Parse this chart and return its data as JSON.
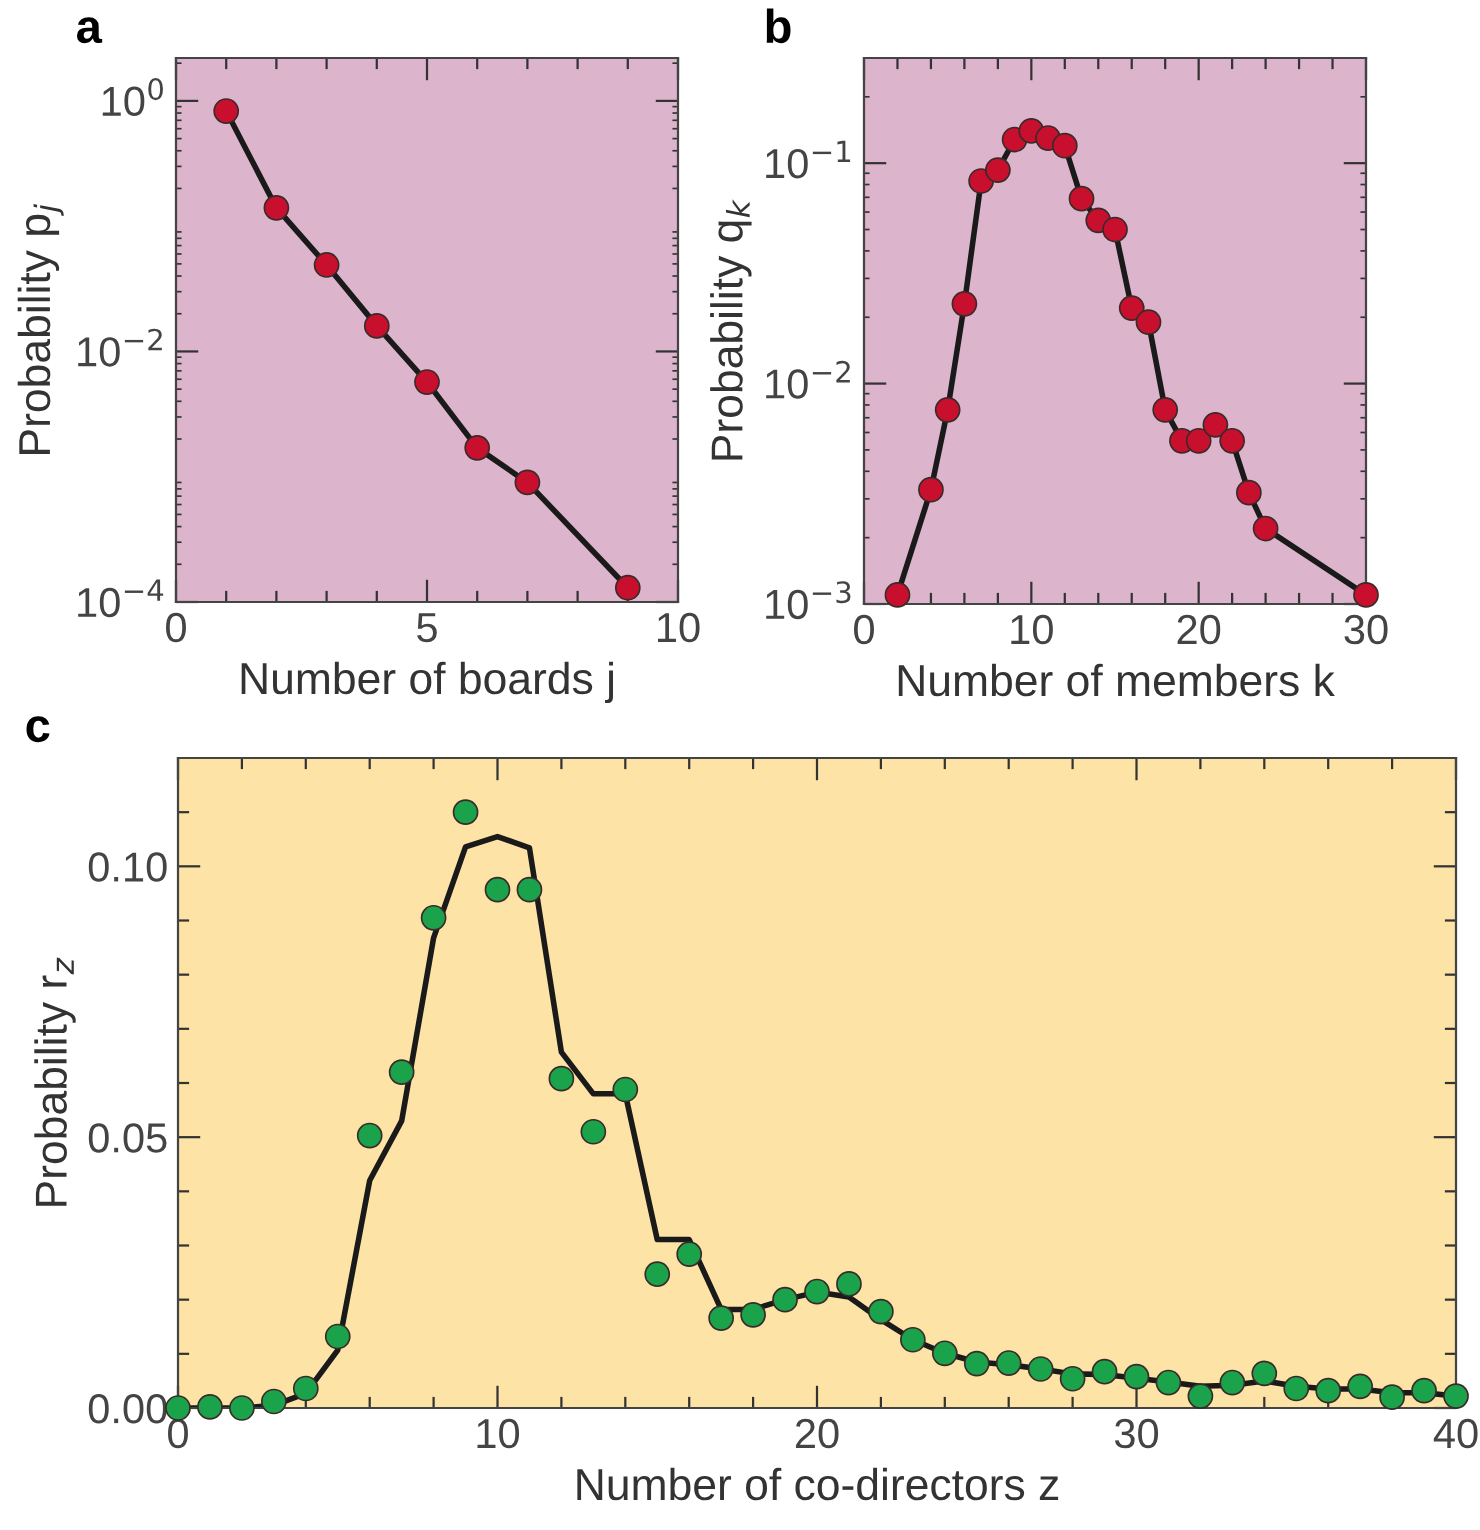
{
  "chart_data": [
    {
      "type": "line",
      "title": "a",
      "xlabel": "Number of boards j",
      "ylabel": "Probability p$_{j}$",
      "log": "y",
      "grid": false,
      "legend": false,
      "xlim": [
        0,
        10
      ],
      "xticks": [
        0,
        {
          "value": 1,
          "label": null
        },
        {
          "value": 2,
          "label": null
        },
        {
          "value": 3,
          "label": null
        },
        {
          "value": 4,
          "label": null
        },
        5,
        {
          "value": 6,
          "label": null
        },
        {
          "value": 7,
          "label": null
        },
        {
          "value": 8,
          "label": null
        },
        {
          "value": 9,
          "label": null
        },
        10
      ],
      "ylim": [
        0.0001,
        2.2
      ],
      "yticks": [
        {
          "value": 0.0001,
          "label": "10$^{−4}$"
        },
        {
          "value": 0.01,
          "label": "10$^{−2}$"
        },
        {
          "value": 1,
          "label": "10$^{0}$"
        }
      ],
      "series": [
        {
          "marker": "none",
          "color": "#1a1a1a",
          "x": [
            1,
            2,
            3,
            4,
            5,
            6,
            7,
            9
          ],
          "values": [
            0.83,
            0.14,
            0.049,
            0.016,
            0.0057,
            0.0017,
            0.0009,
            0.00013
          ]
        },
        {
          "type": "scatter",
          "marker": "circle",
          "color": "#c8102e",
          "x": [
            1,
            2,
            3,
            4,
            5,
            6,
            7,
            9
          ],
          "values": [
            0.83,
            0.14,
            0.049,
            0.016,
            0.0057,
            0.0017,
            0.0009,
            0.00013
          ]
        }
      ]
    },
    {
      "type": "line",
      "title": "b",
      "xlabel": "Number of members k",
      "ylabel": "Probability q$_{k}$",
      "log": "y",
      "grid": false,
      "legend": false,
      "xlim": [
        0,
        30
      ],
      "xticks": [
        0,
        {
          "value": 2,
          "label": null
        },
        {
          "value": 4,
          "label": null
        },
        {
          "value": 6,
          "label": null
        },
        {
          "value": 8,
          "label": null
        },
        10,
        {
          "value": 12,
          "label": null
        },
        {
          "value": 14,
          "label": null
        },
        {
          "value": 16,
          "label": null
        },
        {
          "value": 18,
          "label": null
        },
        20,
        {
          "value": 22,
          "label": null
        },
        {
          "value": 24,
          "label": null
        },
        {
          "value": 26,
          "label": null
        },
        {
          "value": 28,
          "label": null
        },
        30
      ],
      "ylim": [
        0.001,
        0.3
      ],
      "yticks": [
        {
          "value": 0.001,
          "label": "10$^{−3}$"
        },
        {
          "value": 0.01,
          "label": "10$^{−2}$"
        },
        {
          "value": 0.1,
          "label": "10$^{−1}$"
        }
      ],
      "series": [
        {
          "marker": "none",
          "color": "#1a1a1a",
          "x": [
            2,
            4,
            5,
            6,
            7,
            8,
            9,
            10,
            11,
            12,
            13,
            14,
            15,
            16,
            17,
            18,
            19,
            20,
            21,
            22,
            23,
            24,
            30
          ],
          "values": [
            0.0011,
            0.0033,
            0.0076,
            0.023,
            0.083,
            0.093,
            0.128,
            0.14,
            0.13,
            0.12,
            0.069,
            0.055,
            0.05,
            0.022,
            0.019,
            0.0076,
            0.0055,
            0.0055,
            0.0065,
            0.0055,
            0.0032,
            0.0022,
            0.0011
          ]
        },
        {
          "type": "scatter",
          "marker": "circle",
          "color": "#c8102e",
          "x": [
            2,
            4,
            5,
            6,
            7,
            8,
            9,
            10,
            11,
            12,
            13,
            14,
            15,
            16,
            17,
            18,
            19,
            20,
            21,
            22,
            23,
            24,
            30
          ],
          "values": [
            0.0011,
            0.0033,
            0.0076,
            0.023,
            0.083,
            0.093,
            0.128,
            0.14,
            0.13,
            0.12,
            0.069,
            0.055,
            0.05,
            0.022,
            0.019,
            0.0076,
            0.0055,
            0.0055,
            0.0065,
            0.0055,
            0.0032,
            0.0022,
            0.0011
          ]
        }
      ]
    },
    {
      "type": "scatter",
      "title": "c",
      "xlabel": "Number of co-directors z",
      "ylabel": "Probability r$_{z}$",
      "grid": false,
      "legend": false,
      "xlim": [
        0,
        40
      ],
      "xticks": [
        0,
        {
          "value": 2,
          "label": null
        },
        {
          "value": 4,
          "label": null
        },
        {
          "value": 6,
          "label": null
        },
        {
          "value": 8,
          "label": null
        },
        10,
        {
          "value": 12,
          "label": null
        },
        {
          "value": 14,
          "label": null
        },
        {
          "value": 16,
          "label": null
        },
        {
          "value": 18,
          "label": null
        },
        20,
        {
          "value": 22,
          "label": null
        },
        {
          "value": 24,
          "label": null
        },
        {
          "value": 26,
          "label": null
        },
        {
          "value": 28,
          "label": null
        },
        30,
        {
          "value": 32,
          "label": null
        },
        {
          "value": 34,
          "label": null
        },
        {
          "value": 36,
          "label": null
        },
        {
          "value": 38,
          "label": null
        },
        40
      ],
      "ylim": [
        0,
        0.12
      ],
      "yticks": [
        {
          "value": 0,
          "label": "0.00"
        },
        {
          "value": 0.01,
          "label": null
        },
        {
          "value": 0.02,
          "label": null
        },
        {
          "value": 0.03,
          "label": null
        },
        {
          "value": 0.04,
          "label": null
        },
        {
          "value": 0.05,
          "label": "0.05"
        },
        {
          "value": 0.06,
          "label": null
        },
        {
          "value": 0.07,
          "label": null
        },
        {
          "value": 0.08,
          "label": null
        },
        {
          "value": 0.09,
          "label": null
        },
        {
          "value": 0.1,
          "label": "0.10"
        },
        {
          "value": 0.11,
          "label": null
        }
      ],
      "series": [
        {
          "type": "line",
          "marker": "none",
          "color": "#1a1a1a",
          "x": [
            0,
            1,
            2,
            3,
            4,
            5,
            6,
            7,
            8,
            9,
            10,
            11,
            12,
            13,
            14,
            15,
            16,
            17,
            18,
            19,
            20,
            21,
            22,
            23,
            24,
            25,
            26,
            27,
            28,
            29,
            30,
            31,
            32,
            33,
            34,
            35,
            36,
            37,
            38,
            39,
            40
          ],
          "values": [
            0,
            0,
            0,
            0.0005,
            0.0027,
            0.0107,
            0.042,
            0.053,
            0.0868,
            0.1036,
            0.1055,
            0.1034,
            0.0657,
            0.058,
            0.058,
            0.0311,
            0.0311,
            0.0182,
            0.0182,
            0.02,
            0.0214,
            0.0205,
            0.0163,
            0.0126,
            0.0101,
            0.0085,
            0.008,
            0.0072,
            0.0063,
            0.0062,
            0.0055,
            0.0048,
            0.004,
            0.0042,
            0.005,
            0.004,
            0.0035,
            0.0035,
            0.0028,
            0.0028,
            0.0022
          ]
        },
        {
          "marker": "circle",
          "color": "#1aa34a",
          "x": [
            0,
            1,
            2,
            3,
            4,
            5,
            6,
            7,
            8,
            9,
            10,
            11,
            12,
            13,
            14,
            15,
            16,
            17,
            18,
            19,
            20,
            21,
            22,
            23,
            24,
            25,
            26,
            27,
            28,
            29,
            30,
            31,
            32,
            33,
            34,
            35,
            36,
            37,
            38,
            39,
            40
          ],
          "values": [
            0,
            0.0002,
            0,
            0.0012,
            0.0036,
            0.0132,
            0.0503,
            0.062,
            0.0905,
            0.11,
            0.0957,
            0.0957,
            0.0608,
            0.051,
            0.0588,
            0.0247,
            0.0284,
            0.0166,
            0.0172,
            0.02,
            0.0215,
            0.0229,
            0.0178,
            0.0126,
            0.0101,
            0.0082,
            0.0083,
            0.0072,
            0.0054,
            0.0067,
            0.0058,
            0.0047,
            0.0022,
            0.0047,
            0.0064,
            0.0036,
            0.0032,
            0.004,
            0.002,
            0.0032,
            0.0022
          ]
        }
      ]
    }
  ]
}
